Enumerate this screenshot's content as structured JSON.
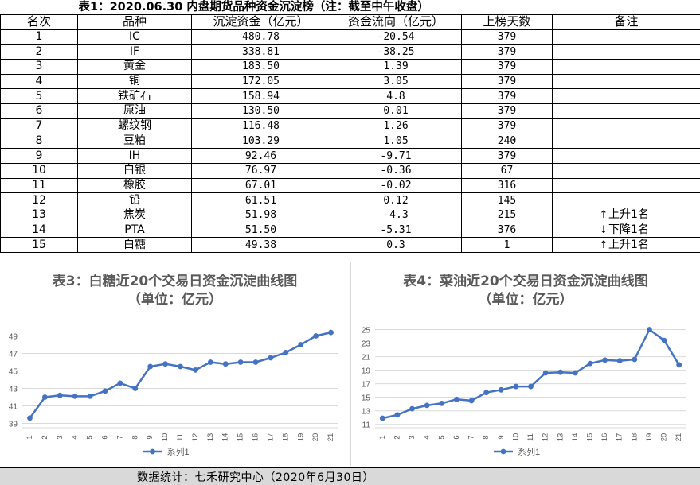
{
  "table": {
    "title": "表1：2020.06.30 内盘期货品种资金沉淀榜（注：截至中午收盘）",
    "headers": [
      "名次",
      "品种",
      "沉淀资金（亿元）",
      "资金流向（亿元）",
      "上榜天数",
      "备注"
    ],
    "rows": [
      {
        "rank": "1",
        "name": "IC",
        "capital": "480.78",
        "flow": "-20.54",
        "days": "379",
        "arrow": "",
        "note": ""
      },
      {
        "rank": "2",
        "name": "IF",
        "capital": "338.81",
        "flow": "-38.25",
        "days": "379",
        "arrow": "",
        "note": ""
      },
      {
        "rank": "3",
        "name": "黄金",
        "capital": "183.50",
        "flow": "1.39",
        "days": "379",
        "arrow": "",
        "note": ""
      },
      {
        "rank": "4",
        "name": "铜",
        "capital": "172.05",
        "flow": "3.05",
        "days": "379",
        "arrow": "",
        "note": ""
      },
      {
        "rank": "5",
        "name": "铁矿石",
        "capital": "158.94",
        "flow": "4.8",
        "days": "379",
        "arrow": "",
        "note": ""
      },
      {
        "rank": "6",
        "name": "原油",
        "capital": "130.50",
        "flow": "0.01",
        "days": "379",
        "arrow": "",
        "note": ""
      },
      {
        "rank": "7",
        "name": "螺纹钢",
        "capital": "116.48",
        "flow": "1.26",
        "days": "379",
        "arrow": "",
        "note": ""
      },
      {
        "rank": "8",
        "name": "豆粕",
        "capital": "103.29",
        "flow": "1.05",
        "days": "240",
        "arrow": "",
        "note": ""
      },
      {
        "rank": "9",
        "name": "IH",
        "capital": "92.46",
        "flow": "-9.71",
        "days": "379",
        "arrow": "",
        "note": ""
      },
      {
        "rank": "10",
        "name": "白银",
        "capital": "76.97",
        "flow": "-0.36",
        "days": "67",
        "arrow": "",
        "note": ""
      },
      {
        "rank": "11",
        "name": "橡胶",
        "capital": "67.01",
        "flow": "-0.02",
        "days": "316",
        "arrow": "",
        "note": ""
      },
      {
        "rank": "12",
        "name": "铅",
        "capital": "61.51",
        "flow": "0.12",
        "days": "145",
        "arrow": "",
        "note": ""
      },
      {
        "rank": "13",
        "name": "焦炭",
        "capital": "51.98",
        "flow": "-4.3",
        "days": "215",
        "arrow": "↑",
        "note": "上升1名"
      },
      {
        "rank": "14",
        "name": "PTA",
        "capital": "51.50",
        "flow": "-5.31",
        "days": "376",
        "arrow": "↓",
        "note": "下降1名"
      },
      {
        "rank": "15",
        "name": "白糖",
        "capital": "49.38",
        "flow": "0.3",
        "days": "1",
        "arrow": "↑",
        "note": "上升1名"
      }
    ]
  },
  "chart_data": [
    {
      "type": "line",
      "title": "表3：白糖近20个交易日资金沉淀曲线图",
      "subtitle": "（单位：亿元）",
      "x": [
        "1",
        "2",
        "3",
        "4",
        "5",
        "6",
        "7",
        "8",
        "9",
        "10",
        "11",
        "12",
        "13",
        "14",
        "15",
        "16",
        "17",
        "18",
        "19",
        "20",
        "21"
      ],
      "series": [
        {
          "name": "系列1",
          "values": [
            39.6,
            42.0,
            42.2,
            42.1,
            42.1,
            42.7,
            43.6,
            43.0,
            45.5,
            45.8,
            45.5,
            45.1,
            46.0,
            45.8,
            46.0,
            46.0,
            46.5,
            47.1,
            48.0,
            49.0,
            49.4
          ]
        }
      ],
      "yticks": [
        39,
        41,
        43,
        45,
        47,
        49
      ],
      "ylim": [
        38.5,
        50.5
      ],
      "color": "#4472c4",
      "legend": "bottom"
    },
    {
      "type": "line",
      "title": "表4：菜油近20个交易日资金沉淀曲线图",
      "subtitle": "（单位：亿元）",
      "x": [
        "1",
        "2",
        "3",
        "4",
        "5",
        "6",
        "7",
        "8",
        "9",
        "10",
        "11",
        "12",
        "13",
        "14",
        "15",
        "16",
        "17",
        "18",
        "19",
        "20",
        "21"
      ],
      "series": [
        {
          "name": "系列1",
          "values": [
            11.9,
            12.4,
            13.3,
            13.8,
            14.1,
            14.7,
            14.5,
            15.7,
            16.1,
            16.6,
            16.6,
            18.6,
            18.7,
            18.6,
            20.0,
            20.5,
            20.4,
            20.6,
            25.0,
            23.4,
            19.8
          ]
        }
      ],
      "yticks": [
        11,
        13,
        15,
        17,
        19,
        21,
        23,
        25
      ],
      "ylim": [
        10.5,
        26
      ],
      "color": "#4472c4",
      "legend": "bottom"
    }
  ],
  "footer": "数据统计：七禾研究中心（2020年6月30日）"
}
